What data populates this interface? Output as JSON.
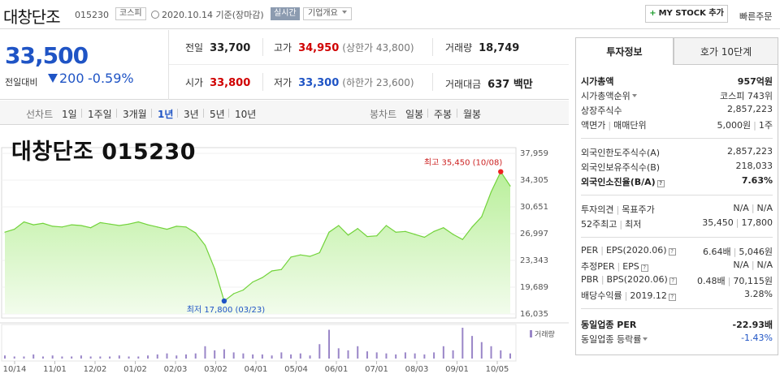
{
  "header": {
    "company_name": "대창단조",
    "code": "015230",
    "market_badge": "코스피",
    "date": "2020.10.14",
    "date_suffix": "기준(장마감)",
    "realtime_badge": "실시간",
    "company_info": "기업개요",
    "mystock_btn": "MY STOCK 추가",
    "quick_order": "빠른주문"
  },
  "price": {
    "current": "33,500",
    "change_label": "전일대비",
    "change": "200",
    "change_pct": "-0.59%",
    "prev_close_label": "전일",
    "prev_close": "33,700",
    "high_label": "고가",
    "high": "34,950",
    "upper_limit": "(상한가 43,800)",
    "volume_label": "거래량",
    "volume": "18,749",
    "open_label": "시가",
    "open": "33,800",
    "low_label": "저가",
    "low": "33,300",
    "lower_limit": "(하한가 23,600)",
    "amount_label": "거래대금",
    "amount": "637 백만"
  },
  "period_tabs": {
    "label": "선차트",
    "items": [
      "1일",
      "1주일",
      "3개월",
      "1년",
      "3년",
      "5년",
      "10년"
    ],
    "selected": "1년",
    "candle_label": "봉차트",
    "candle_items": [
      "일봉",
      "주봉",
      "월봉"
    ]
  },
  "chart_data": {
    "type": "area",
    "title": "대창단조 015230",
    "x_tick_labels": [
      "10/14",
      "11/01",
      "12/02",
      "01/02",
      "02/03",
      "03/02",
      "04/01",
      "05/04",
      "06/01",
      "07/01",
      "08/03",
      "09/01",
      "10/05"
    ],
    "y_tick_labels": [
      "37,959",
      "34,305",
      "30,651",
      "26,997",
      "23,343",
      "19,689",
      "16,035"
    ],
    "ylim": [
      16035,
      37959
    ],
    "x": [
      "10/14",
      "10/21",
      "10/28",
      "11/04",
      "11/11",
      "11/18",
      "11/25",
      "12/02",
      "12/09",
      "12/16",
      "12/23",
      "12/30",
      "01/06",
      "01/13",
      "01/20",
      "01/27",
      "02/03",
      "02/10",
      "02/17",
      "02/24",
      "03/02",
      "03/09",
      "03/16",
      "03/23",
      "03/30",
      "04/06",
      "04/13",
      "04/20",
      "04/27",
      "05/04",
      "05/11",
      "05/18",
      "05/25",
      "06/01",
      "06/08",
      "06/15",
      "06/22",
      "06/29",
      "07/06",
      "07/13",
      "07/20",
      "07/27",
      "08/03",
      "08/10",
      "08/17",
      "08/24",
      "08/31",
      "09/07",
      "09/14",
      "09/21",
      "09/28",
      "10/05",
      "10/08",
      "10/14"
    ],
    "y": [
      27200,
      27600,
      28600,
      28200,
      28400,
      28000,
      27900,
      28200,
      28100,
      27800,
      28500,
      28300,
      28100,
      28300,
      28600,
      28200,
      27900,
      27600,
      28000,
      27900,
      27100,
      25400,
      22200,
      17800,
      18800,
      19300,
      20400,
      21000,
      21900,
      22100,
      23800,
      24100,
      23900,
      24400,
      27200,
      28100,
      26800,
      27700,
      26600,
      26700,
      28100,
      27200,
      27300,
      26900,
      26500,
      27300,
      27800,
      26900,
      26200,
      27900,
      29300,
      32700,
      35450,
      33500
    ],
    "annotations": [
      {
        "text": "최고 35,450 (10/08)",
        "x": "10/08",
        "y": 35450
      },
      {
        "text": "최저 17,800 (03/23)",
        "x": "03/23",
        "y": 17800
      }
    ],
    "volume_label": "거래량",
    "volume": [
      3,
      2,
      2,
      4,
      2,
      3,
      2,
      2,
      3,
      2,
      2,
      2,
      3,
      2,
      2,
      3,
      4,
      5,
      3,
      4,
      5,
      12,
      8,
      9,
      6,
      5,
      4,
      4,
      3,
      6,
      4,
      5,
      3,
      14,
      28,
      10,
      8,
      12,
      7,
      6,
      5,
      4,
      6,
      5,
      4,
      6,
      12,
      8,
      30,
      22,
      16,
      12,
      8,
      5
    ]
  },
  "invest": {
    "tab_active": "투자정보",
    "tab_other": "호가 10단계",
    "market_cap_label": "시가총액",
    "market_cap": "957억원",
    "market_cap_rank_label": "시가총액순위",
    "market_cap_rank": "코스피 743위",
    "shares_label": "상장주식수",
    "shares": "2,857,223",
    "par_label": "액면가",
    "trade_unit_label": "매매단위",
    "par": "5,000원",
    "trade_unit": "1주",
    "foreign_limit_label": "외국인한도주식수(A)",
    "foreign_limit": "2,857,223",
    "foreign_hold_label": "외국인보유주식수(B)",
    "foreign_hold": "218,033",
    "foreign_ratio_label": "외국인소진율(B/A)",
    "foreign_ratio": "7.63%",
    "opinion_label": "투자의견",
    "target_label": "목표주가",
    "opinion": "N/A",
    "target": "N/A",
    "w52_high_label": "52주최고",
    "w52_low_label": "최저",
    "w52_high": "35,450",
    "w52_low": "17,800",
    "per_label": "PER",
    "eps_label": "EPS(2020.06)",
    "per": "6.64배",
    "eps": "5,046원",
    "est_per_label": "추정PER",
    "est_eps_label": "EPS",
    "est_per": "N/A",
    "est_eps": "N/A",
    "pbr_label": "PBR",
    "bps_label": "BPS(2020.06)",
    "pbr": "0.48배",
    "bps": "70,115원",
    "dividend_label": "배당수익률",
    "dividend_date": "2019.12",
    "dividend": "3.28%",
    "sector_per_label": "동일업종 PER",
    "sector_per": "-22.93배",
    "sector_change_label": "동일업종 등락률",
    "sector_change": "-1.43%"
  }
}
